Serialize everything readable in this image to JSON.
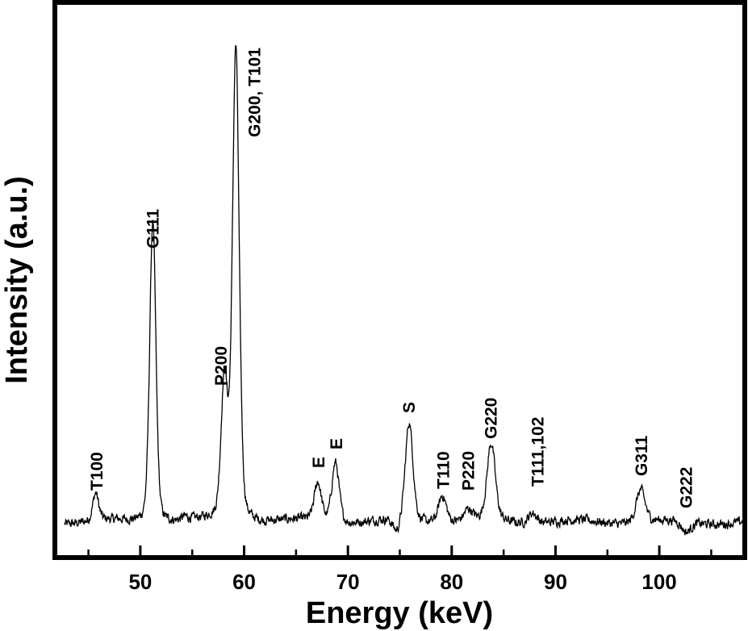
{
  "chart_data": {
    "type": "line",
    "xlabel": "Energy (keV)",
    "ylabel": "Intensity (a.u.)",
    "xlim": [
      42,
      108
    ],
    "ylim": [
      0,
      1.0
    ],
    "x_ticks": [
      50,
      60,
      70,
      80,
      90,
      100
    ],
    "y_ticks_labeled": false,
    "grid": false,
    "baseline": 0.06,
    "series": [
      {
        "peaks": [
          {
            "x": 45.7,
            "y": 0.11
          },
          {
            "x": 51.2,
            "y": 0.61
          },
          {
            "x": 54.3,
            "y": 0.065
          },
          {
            "x": 58.1,
            "y": 0.31
          },
          {
            "x": 59.2,
            "y": 0.92
          },
          {
            "x": 65.1,
            "y": 0.06
          },
          {
            "x": 67.1,
            "y": 0.13
          },
          {
            "x": 68.8,
            "y": 0.17
          },
          {
            "x": 74.7,
            "y": 0.035
          },
          {
            "x": 75.9,
            "y": 0.24
          },
          {
            "x": 77.9,
            "y": 0.06
          },
          {
            "x": 79.1,
            "y": 0.11
          },
          {
            "x": 81.6,
            "y": 0.08
          },
          {
            "x": 83.8,
            "y": 0.2
          },
          {
            "x": 87.8,
            "y": 0.08
          },
          {
            "x": 98.2,
            "y": 0.12
          },
          {
            "x": 102.6,
            "y": 0.04
          }
        ]
      }
    ],
    "annotations": [
      {
        "text": "T100",
        "x": 45.8
      },
      {
        "text": "G111",
        "x": 51.2
      },
      {
        "text": "P200",
        "x": 57.8
      },
      {
        "text": "G200, T101",
        "x": 61.0
      },
      {
        "text": "E",
        "x": 67.2
      },
      {
        "text": "E",
        "x": 68.9
      },
      {
        "text": "S",
        "x": 75.9
      },
      {
        "text": "T110",
        "x": 79.2
      },
      {
        "text": "P220",
        "x": 81.6
      },
      {
        "text": "G220",
        "x": 83.8
      },
      {
        "text": "T111,102",
        "x": 88.3
      },
      {
        "text": "G311",
        "x": 98.3
      },
      {
        "text": "G222",
        "x": 102.6
      }
    ]
  }
}
